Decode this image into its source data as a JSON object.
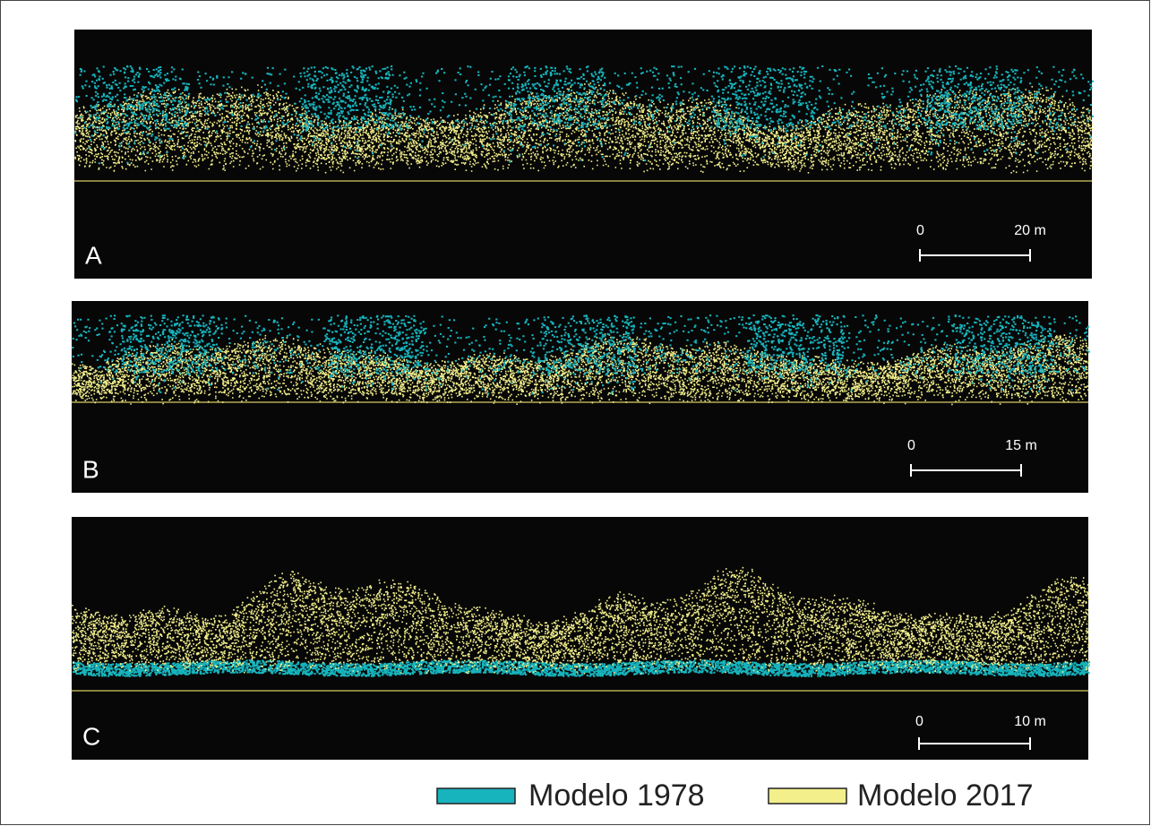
{
  "panels": [
    {
      "label": "A",
      "scale": {
        "start": "0",
        "end": "20 m"
      }
    },
    {
      "label": "B",
      "scale": {
        "start": "0",
        "end": "15 m"
      }
    },
    {
      "label": "C",
      "scale": {
        "start": "0",
        "end": "10 m"
      }
    }
  ],
  "legend": [
    {
      "label": "Modelo 1978",
      "color": "#17b4bd"
    },
    {
      "label": "Modelo 2017",
      "color": "#f3f08c"
    }
  ]
}
